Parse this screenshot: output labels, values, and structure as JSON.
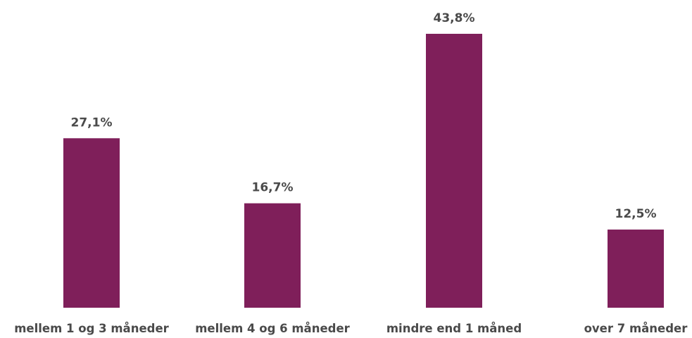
{
  "chart_data": {
    "type": "bar",
    "title": "",
    "xlabel": "",
    "ylabel": "",
    "categories": [
      "mellem 1 og 3 måneder",
      "mellem 4 og 6 måneder",
      "mindre end 1 måned",
      "over 7 måneder"
    ],
    "values": [
      27.1,
      16.7,
      43.8,
      12.5
    ],
    "value_labels": [
      "27,1%",
      "16,7%",
      "43,8%",
      "12,5%"
    ],
    "ylim": [
      0,
      43.8
    ],
    "grid": false,
    "legend": "none",
    "bar_color": "#7F1F5A"
  }
}
